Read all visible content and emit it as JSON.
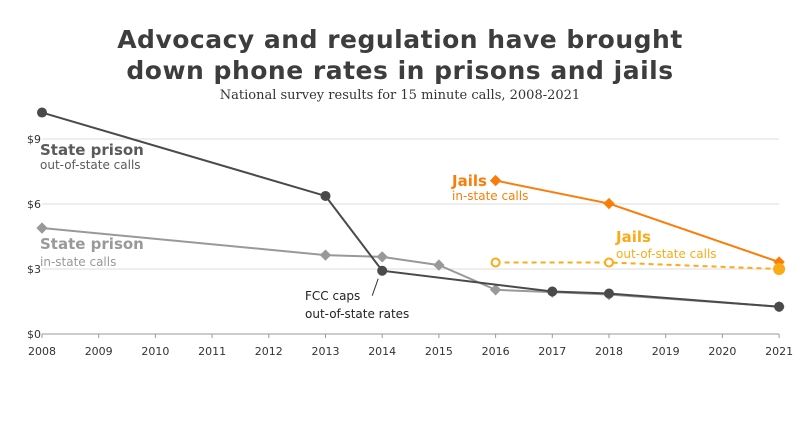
{
  "chart_data": {
    "type": "line",
    "title": "Advocacy and regulation have brought down phone rates in prisons and jails",
    "title_lines": [
      "Advocacy and regulation have brought",
      "down phone rates in prisons and jails"
    ],
    "subtitle": "National survey results for 15 minute calls, 2008-2021",
    "xlabel": "",
    "ylabel": "",
    "xlim": [
      2008,
      2021
    ],
    "ylim": [
      0,
      10.5
    ],
    "x_ticks": [
      "2008",
      "2009",
      "2010",
      "2011",
      "2012",
      "2013",
      "2014",
      "2015",
      "2016",
      "2017",
      "2018",
      "2019",
      "2020",
      "2021"
    ],
    "y_ticks": [
      {
        "v": 0,
        "label": "$0"
      },
      {
        "v": 3,
        "label": "$3"
      },
      {
        "v": 6,
        "label": "$6"
      },
      {
        "v": 9,
        "label": "$9"
      }
    ],
    "grid": "horizontal",
    "series": [
      {
        "key": "sp_in",
        "name": "State prison",
        "sub": "in-state calls",
        "color": "#999999",
        "marker": "diamond",
        "dashed": false,
        "x": [
          2008,
          2013,
          2014,
          2015,
          2016,
          2017,
          2018,
          2021
        ],
        "y": [
          4.89,
          3.64,
          3.56,
          3.18,
          2.04,
          1.93,
          1.82,
          1.26
        ]
      },
      {
        "key": "sp_out",
        "name": "State prison",
        "sub": "out-of-state calls",
        "color": "#4a4a4a",
        "marker": "circle",
        "dashed": false,
        "x": [
          2008,
          2013,
          2014,
          2017,
          2018,
          2021
        ],
        "y": [
          10.22,
          6.37,
          2.92,
          1.96,
          1.87,
          1.26
        ]
      },
      {
        "key": "jail_in",
        "name": "Jails",
        "sub": "in-state calls",
        "color": "#fb7d07",
        "marker": "diamond",
        "dashed": false,
        "x": [
          2016,
          2018,
          2021
        ],
        "y": [
          7.08,
          6.02,
          3.32
        ]
      },
      {
        "key": "jail_out",
        "name": "Jails",
        "sub": "out-of-state calls",
        "color": "#fbab18",
        "marker": "open-circle-last-filled",
        "dashed": true,
        "x": [
          2016,
          2018,
          2021
        ],
        "y": [
          3.3,
          3.3,
          3.0
        ]
      }
    ],
    "annotations": [
      {
        "text_lines": [
          "FCC caps",
          "out-of-state rates"
        ],
        "x": 2014,
        "y": 2.92
      }
    ]
  }
}
